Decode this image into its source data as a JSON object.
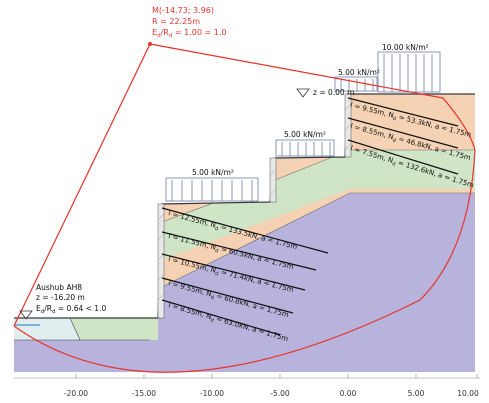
{
  "circle": {
    "center_label": "M(-14.73; 3.96)",
    "radius_label": "R = 22.25m",
    "ratio_prefix": "E",
    "ratio_sub1": "d",
    "ratio_mid": "/R",
    "ratio_sub2": "d",
    "ratio_value": " = 1.00 = 1.0"
  },
  "loads": [
    {
      "label": "10.00 kN/m²"
    },
    {
      "label": "5.00 kN/m²"
    },
    {
      "label": "5.00 kN/m²"
    },
    {
      "label": "5.00 kN/m²"
    }
  ],
  "ground": {
    "label": "z = 0.00 m"
  },
  "excavation": {
    "title": "Aushub AH8",
    "depth": "z = -16.20 m",
    "ratio_prefix": "E",
    "ratio_sub1": "d",
    "ratio_mid": "/R",
    "ratio_sub2": "d",
    "ratio_value": " = 0.64 < 1.0"
  },
  "anchors": [
    {
      "pre": "l = 9.55m, N",
      "sub": "d",
      "post": " = 53.3kN, a = 1.75m"
    },
    {
      "pre": "l = 8.55m, N",
      "sub": "d",
      "post": " = 46.8kN, a = 1.75m"
    },
    {
      "pre": "l = 7.55m, N",
      "sub": "d",
      "post": " = 132.6kN, a = 1.75m"
    },
    {
      "pre": "l = 12.55m, N",
      "sub": "d",
      "post": " = 133.5kN, a = 1.75m"
    },
    {
      "pre": "l = 11.55m, N",
      "sub": "d",
      "post": " = 60.5kN, a = 1.75m"
    },
    {
      "pre": "l = 10.55m, N",
      "sub": "d",
      "post": " = 71.4kN, a = 1.75m"
    },
    {
      "pre": "l = 9.55m, N",
      "sub": "d",
      "post": " = 60.8kN, a = 1.75m"
    },
    {
      "pre": "l = 8.55m, N",
      "sub": "d",
      "post": " = 63.0kN, a = 1.75m"
    }
  ],
  "axis": {
    "ticks": [
      "-20.00",
      "-15.00",
      "-10.00",
      "-5.00",
      "0.00",
      "5.00",
      "10.00"
    ]
  },
  "colors": {
    "failure_circle": "#e8322a",
    "soil_orange": "#f6d2b4",
    "soil_green": "#cfe5c6",
    "soil_purple": "#b7b3dc",
    "water": "#4a90c8"
  }
}
